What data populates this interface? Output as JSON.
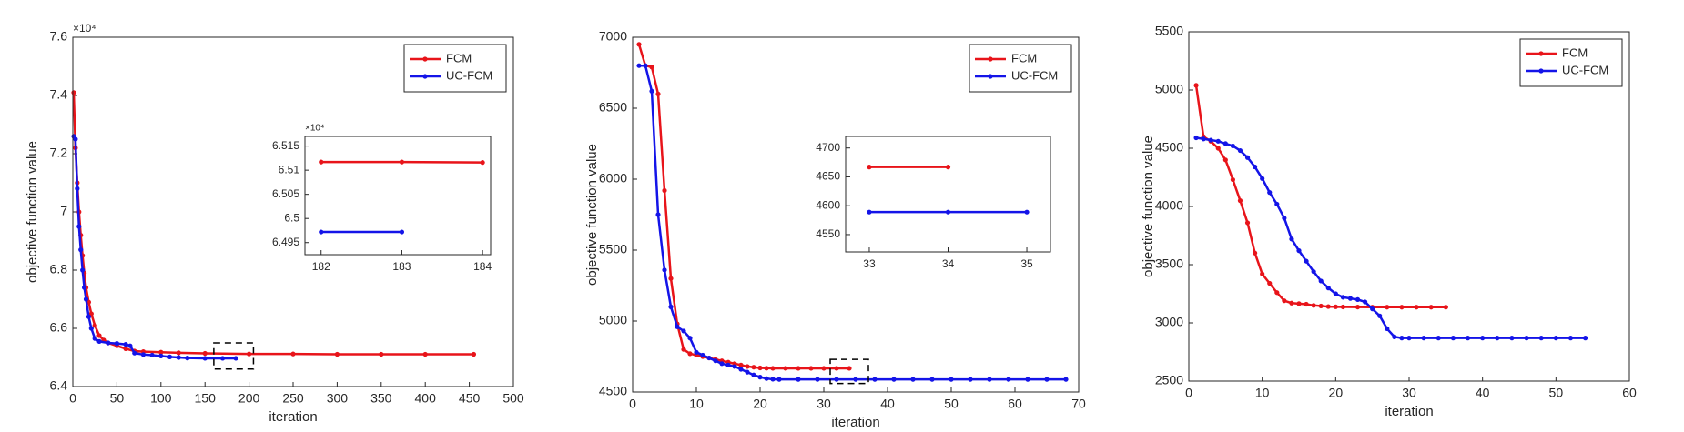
{
  "chart_data": [
    {
      "type": "line",
      "xlabel": "iteration",
      "ylabel": "objective function value",
      "y_multiplier": "×10⁴",
      "xlim": [
        0,
        500
      ],
      "xticks": [
        0,
        50,
        100,
        150,
        200,
        250,
        300,
        350,
        400,
        450,
        500
      ],
      "ylim": [
        6.4,
        7.6
      ],
      "yticks": [
        6.4,
        6.6,
        6.8,
        7,
        7.2,
        7.4,
        7.6
      ],
      "legend": "upper right",
      "zoom_box": {
        "x": [
          160,
          205
        ],
        "y": [
          6.46,
          6.55
        ]
      },
      "series": [
        {
          "name": "FCM",
          "color": "#e8141a",
          "x": [
            1,
            3,
            5,
            7,
            9,
            11,
            13,
            15,
            18,
            21,
            25,
            30,
            35,
            40,
            50,
            60,
            70,
            80,
            100,
            120,
            150,
            200,
            250,
            300,
            350,
            400,
            455
          ],
          "values": [
            7.41,
            7.22,
            7.1,
            7.0,
            6.92,
            6.85,
            6.79,
            6.74,
            6.69,
            6.65,
            6.61,
            6.575,
            6.56,
            6.55,
            6.54,
            6.53,
            6.522,
            6.52,
            6.518,
            6.516,
            6.514,
            6.512,
            6.512,
            6.511,
            6.511,
            6.511,
            6.511
          ]
        },
        {
          "name": "UC-FCM",
          "color": "#1414e8",
          "x": [
            1,
            3,
            5,
            7,
            9,
            11,
            13,
            15,
            18,
            21,
            25,
            30,
            40,
            50,
            60,
            65,
            70,
            80,
            90,
            100,
            110,
            120,
            130,
            150,
            170,
            185
          ],
          "values": [
            7.26,
            7.25,
            7.08,
            6.95,
            6.87,
            6.8,
            6.74,
            6.7,
            6.64,
            6.6,
            6.565,
            6.555,
            6.55,
            6.548,
            6.545,
            6.54,
            6.515,
            6.51,
            6.508,
            6.505,
            6.502,
            6.5,
            6.498,
            6.497,
            6.497,
            6.497
          ]
        }
      ]
    },
    {
      "type": "line",
      "y_multiplier": "×10⁴",
      "xlim": [
        181.8,
        184.1
      ],
      "xticks": [
        182,
        183,
        184
      ],
      "ylim": [
        6.4925,
        6.517
      ],
      "yticks": [
        6.495,
        6.5,
        6.505,
        6.51,
        6.515
      ],
      "series": [
        {
          "name": "FCM",
          "color": "#e8141a",
          "x": [
            182,
            183,
            184
          ],
          "values": [
            6.5117,
            6.5117,
            6.5116
          ]
        },
        {
          "name": "UC-FCM",
          "color": "#1414e8",
          "x": [
            182,
            183
          ],
          "values": [
            6.4972,
            6.4972
          ]
        }
      ]
    },
    {
      "type": "line",
      "xlabel": "iteration",
      "ylabel": "objective function value",
      "xlim": [
        0,
        70
      ],
      "xticks": [
        0,
        10,
        20,
        30,
        40,
        50,
        60,
        70
      ],
      "ylim": [
        4500,
        7000
      ],
      "yticks": [
        4500,
        5000,
        5500,
        6000,
        6500,
        7000
      ],
      "legend": "upper right",
      "zoom_box": {
        "x": [
          31,
          37
        ],
        "y": [
          4560,
          4730
        ]
      },
      "series": [
        {
          "name": "FCM",
          "color": "#e8141a",
          "x": [
            1,
            2,
            3,
            4,
            5,
            6,
            7,
            8,
            9,
            10,
            11,
            12,
            13,
            14,
            15,
            16,
            17,
            18,
            19,
            20,
            21,
            22,
            24,
            26,
            28,
            30,
            32,
            34
          ],
          "values": [
            6950,
            6800,
            6790,
            6600,
            5920,
            5300,
            4980,
            4800,
            4770,
            4760,
            4750,
            4740,
            4730,
            4720,
            4710,
            4700,
            4690,
            4680,
            4675,
            4670,
            4668,
            4667,
            4667,
            4667,
            4667,
            4667,
            4667,
            4667
          ]
        },
        {
          "name": "UC-FCM",
          "color": "#1414e8",
          "x": [
            1,
            2,
            3,
            4,
            5,
            6,
            7,
            8,
            9,
            10,
            11,
            12,
            13,
            14,
            15,
            16,
            17,
            18,
            19,
            20,
            21,
            22,
            23,
            26,
            29,
            32,
            35,
            38,
            41,
            44,
            47,
            50,
            53,
            56,
            59,
            62,
            65,
            68
          ],
          "values": [
            6800,
            6800,
            6620,
            5750,
            5360,
            5100,
            4960,
            4930,
            4880,
            4780,
            4760,
            4740,
            4720,
            4700,
            4690,
            4680,
            4660,
            4640,
            4620,
            4605,
            4595,
            4590,
            4589,
            4589,
            4589,
            4589,
            4589,
            4589,
            4589,
            4589,
            4589,
            4589,
            4589,
            4589,
            4589,
            4589,
            4589,
            4589
          ]
        }
      ]
    },
    {
      "type": "line",
      "xlim": [
        32.7,
        35.3
      ],
      "xticks": [
        33,
        34,
        35
      ],
      "ylim": [
        4520,
        4720
      ],
      "yticks": [
        4550,
        4600,
        4650,
        4700
      ],
      "series": [
        {
          "name": "FCM",
          "color": "#e8141a",
          "x": [
            33,
            34
          ],
          "values": [
            4667,
            4667
          ]
        },
        {
          "name": "UC-FCM",
          "color": "#1414e8",
          "x": [
            33,
            34,
            35
          ],
          "values": [
            4589,
            4589,
            4589
          ]
        }
      ]
    },
    {
      "type": "line",
      "xlabel": "iteration",
      "ylabel": "objective function value",
      "xlim": [
        0,
        60
      ],
      "xticks": [
        0,
        10,
        20,
        30,
        40,
        50,
        60
      ],
      "ylim": [
        2500,
        5500
      ],
      "yticks": [
        2500,
        3000,
        3500,
        4000,
        4500,
        5000,
        5500
      ],
      "legend": "upper right",
      "series": [
        {
          "name": "FCM",
          "color": "#e8141a",
          "x": [
            1,
            2,
            3,
            4,
            5,
            6,
            7,
            8,
            9,
            10,
            11,
            12,
            13,
            14,
            15,
            16,
            17,
            18,
            19,
            20,
            21,
            23,
            25,
            27,
            29,
            31,
            33,
            35
          ],
          "values": [
            5040,
            4600,
            4560,
            4500,
            4400,
            4230,
            4050,
            3860,
            3600,
            3420,
            3340,
            3260,
            3190,
            3170,
            3165,
            3160,
            3150,
            3145,
            3140,
            3138,
            3137,
            3136,
            3135,
            3135,
            3135,
            3135,
            3135,
            3135
          ]
        },
        {
          "name": "UC-FCM",
          "color": "#1414e8",
          "x": [
            1,
            2,
            3,
            4,
            5,
            6,
            7,
            8,
            9,
            10,
            11,
            12,
            13,
            14,
            15,
            16,
            17,
            18,
            19,
            20,
            21,
            22,
            23,
            24,
            25,
            26,
            27,
            28,
            29,
            30,
            32,
            34,
            36,
            38,
            40,
            42,
            44,
            46,
            48,
            50,
            52,
            54
          ],
          "values": [
            4590,
            4580,
            4570,
            4560,
            4540,
            4520,
            4480,
            4420,
            4340,
            4240,
            4120,
            4020,
            3900,
            3720,
            3620,
            3530,
            3440,
            3360,
            3300,
            3250,
            3220,
            3210,
            3200,
            3180,
            3120,
            3060,
            2950,
            2880,
            2870,
            2870,
            2870,
            2870,
            2870,
            2870,
            2870,
            2870,
            2870,
            2870,
            2870,
            2870,
            2870,
            2870
          ]
        }
      ]
    }
  ]
}
